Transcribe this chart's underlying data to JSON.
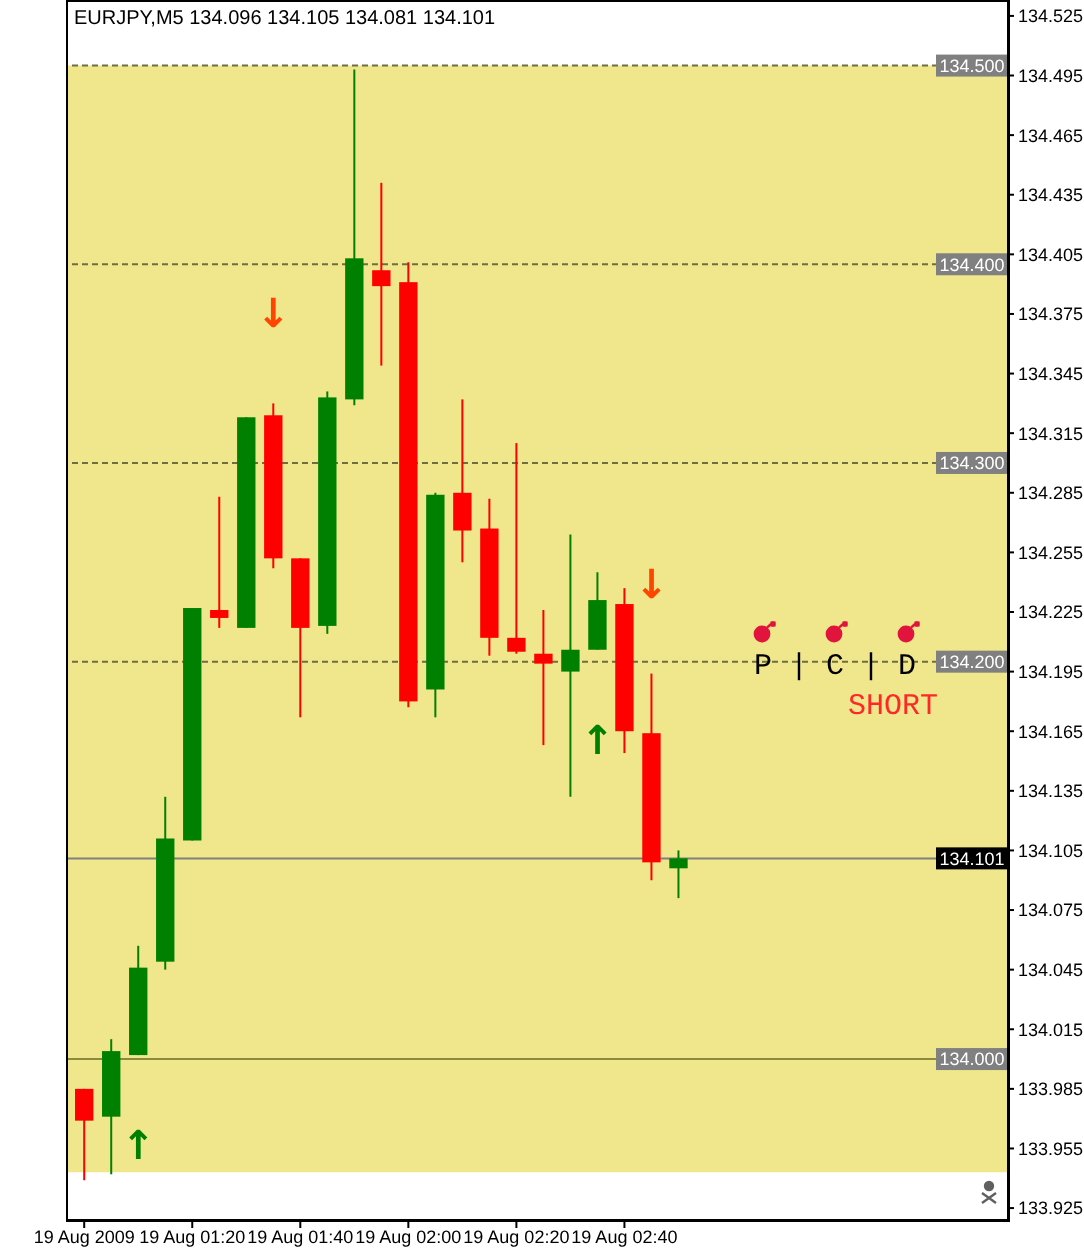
{
  "chart_data": {
    "type": "candlestick",
    "title": "EURJPY,M5 134.096 134.105 134.081 134.101",
    "x": [
      "2009-08-19T01:00",
      "2009-08-19T01:05",
      "2009-08-19T01:10",
      "2009-08-19T01:15",
      "2009-08-19T01:20",
      "2009-08-19T01:25",
      "2009-08-19T01:30",
      "2009-08-19T01:35",
      "2009-08-19T01:40",
      "2009-08-19T01:45",
      "2009-08-19T01:50",
      "2009-08-19T01:55",
      "2009-08-19T02:00",
      "2009-08-19T02:05",
      "2009-08-19T02:10",
      "2009-08-19T02:15",
      "2009-08-19T02:20",
      "2009-08-19T02:25",
      "2009-08-19T02:30",
      "2009-08-19T02:35",
      "2009-08-19T02:40",
      "2009-08-19T02:45",
      "2009-08-19T02:50"
    ],
    "ohlc": [
      [
        133.985,
        133.985,
        133.939,
        133.969
      ],
      [
        133.971,
        134.01,
        133.942,
        134.004
      ],
      [
        134.002,
        134.057,
        134.002,
        134.046
      ],
      [
        134.049,
        134.132,
        134.045,
        134.111
      ],
      [
        134.11,
        134.227,
        134.11,
        134.227
      ],
      [
        134.226,
        134.283,
        134.217,
        134.222
      ],
      [
        134.217,
        134.323,
        134.217,
        134.323
      ],
      [
        134.324,
        134.33,
        134.247,
        134.252
      ],
      [
        134.252,
        134.252,
        134.172,
        134.217
      ],
      [
        134.218,
        134.336,
        134.214,
        134.333
      ],
      [
        134.332,
        134.498,
        134.329,
        134.403
      ],
      [
        134.397,
        134.441,
        134.349,
        134.389
      ],
      [
        134.391,
        134.401,
        134.177,
        134.18
      ],
      [
        134.186,
        134.285,
        134.172,
        134.284
      ],
      [
        134.285,
        134.332,
        134.25,
        134.266
      ],
      [
        134.267,
        134.282,
        134.203,
        134.212
      ],
      [
        134.212,
        134.31,
        134.204,
        134.205
      ],
      [
        134.204,
        134.226,
        134.158,
        134.199
      ],
      [
        134.195,
        134.264,
        134.132,
        134.206
      ],
      [
        134.206,
        134.245,
        134.206,
        134.231
      ],
      [
        134.229,
        134.237,
        134.154,
        134.165
      ],
      [
        134.164,
        134.194,
        134.09,
        134.099
      ],
      [
        134.096,
        134.105,
        134.081,
        134.101
      ]
    ],
    "colors": [
      "#ff0000",
      "#008000",
      "#008000",
      "#008000",
      "#008000",
      "#ff0000",
      "#008000",
      "#ff0000",
      "#ff0000",
      "#008000",
      "#008000",
      "#ff0000",
      "#ff0000",
      "#008000",
      "#ff0000",
      "#ff0000",
      "#ff0000",
      "#ff0000",
      "#008000",
      "#008000",
      "#ff0000",
      "#ff0000",
      "#008000"
    ],
    "xlim": [
      "2009-08-19T00:57",
      "2009-08-19T03:51"
    ],
    "xticks": [
      {
        "value": "2009-08-19T01:00",
        "label": "19 Aug 2009"
      },
      {
        "value": "2009-08-19T01:20",
        "label": "19 Aug 01:20"
      },
      {
        "value": "2009-08-19T01:40",
        "label": "19 Aug 01:40"
      },
      {
        "value": "2009-08-19T02:00",
        "label": "19 Aug 02:00"
      },
      {
        "value": "2009-08-19T02:20",
        "label": "19 Aug 02:20"
      },
      {
        "value": "2009-08-19T02:40",
        "label": "19 Aug 02:40"
      }
    ],
    "ylim": [
      133.919,
      134.532
    ],
    "yticks": [
      133.925,
      133.955,
      133.985,
      134.015,
      134.045,
      134.075,
      134.105,
      134.135,
      134.165,
      134.195,
      134.225,
      134.255,
      134.285,
      134.315,
      134.345,
      134.375,
      134.405,
      134.435,
      134.465,
      134.495,
      134.525
    ],
    "bands": [
      {
        "axis": "y",
        "from": 133.943,
        "to": 134.5,
        "color": "#f0e68c"
      }
    ],
    "ref_lines": [
      {
        "axis": "y",
        "value": 134.5,
        "label": "134.500",
        "line_style": "dashed",
        "color": "#6e6e40"
      },
      {
        "axis": "y",
        "value": 134.4,
        "label": "134.400",
        "line_style": "dashed",
        "color": "#6e6e40"
      },
      {
        "axis": "y",
        "value": 134.3,
        "label": "134.300",
        "line_style": "dashed",
        "color": "#6e6e40"
      },
      {
        "axis": "y",
        "value": 134.2,
        "label": "134.200",
        "line_style": "dashed",
        "color": "#6e6e40"
      },
      {
        "axis": "y",
        "value": 134.101,
        "label": "134.101",
        "line_style": "solid",
        "color": "#808080"
      },
      {
        "axis": "y",
        "value": 134.0,
        "label": "134.000",
        "line_style": "solid",
        "color": "#8b8b3d"
      }
    ],
    "annotations": [
      {
        "text": "↑",
        "x": "2009-08-19T01:10",
        "y": 134.002
      },
      {
        "text": "↓",
        "x": "2009-08-19T01:35",
        "y": 134.33
      },
      {
        "text": "↑",
        "x": "2009-08-19T02:35",
        "y": 134.206
      },
      {
        "text": "↓",
        "x": "2009-08-19T02:45",
        "y": 134.194
      },
      "P | C | D",
      "SHORT"
    ]
  }
}
